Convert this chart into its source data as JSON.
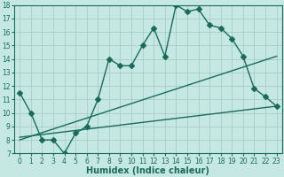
{
  "title": "",
  "xlabel": "Humidex (Indice chaleur)",
  "ylabel": "",
  "xlim": [
    -0.5,
    23.5
  ],
  "ylim": [
    7,
    18
  ],
  "xticks": [
    0,
    1,
    2,
    3,
    4,
    5,
    6,
    7,
    8,
    9,
    10,
    11,
    12,
    13,
    14,
    15,
    16,
    17,
    18,
    19,
    20,
    21,
    22,
    23
  ],
  "yticks": [
    7,
    8,
    9,
    10,
    11,
    12,
    13,
    14,
    15,
    16,
    17,
    18
  ],
  "bg_color": "#c5e8e3",
  "line_color": "#1a6b5a",
  "grid_color": "#a0c8c0",
  "curve_x": [
    0,
    1,
    2,
    3,
    4,
    5,
    6,
    7,
    8,
    9,
    10,
    11,
    12,
    13,
    14,
    15,
    16,
    17,
    18,
    19,
    20,
    21,
    22,
    23
  ],
  "curve_y": [
    11.5,
    10.0,
    8.0,
    8.0,
    7.0,
    8.5,
    9.0,
    11.0,
    14.0,
    13.5,
    13.5,
    15.0,
    16.3,
    14.2,
    18.0,
    17.5,
    17.7,
    16.5,
    16.3,
    15.5,
    14.2,
    11.8,
    11.2,
    10.5
  ],
  "line1_x": [
    0,
    23
  ],
  "line1_y": [
    8.0,
    14.2
  ],
  "line2_x": [
    0,
    23
  ],
  "line2_y": [
    8.2,
    10.5
  ],
  "markersize": 3,
  "linewidth": 1.0,
  "xlabel_fontsize": 7,
  "tick_fontsize": 5.5
}
